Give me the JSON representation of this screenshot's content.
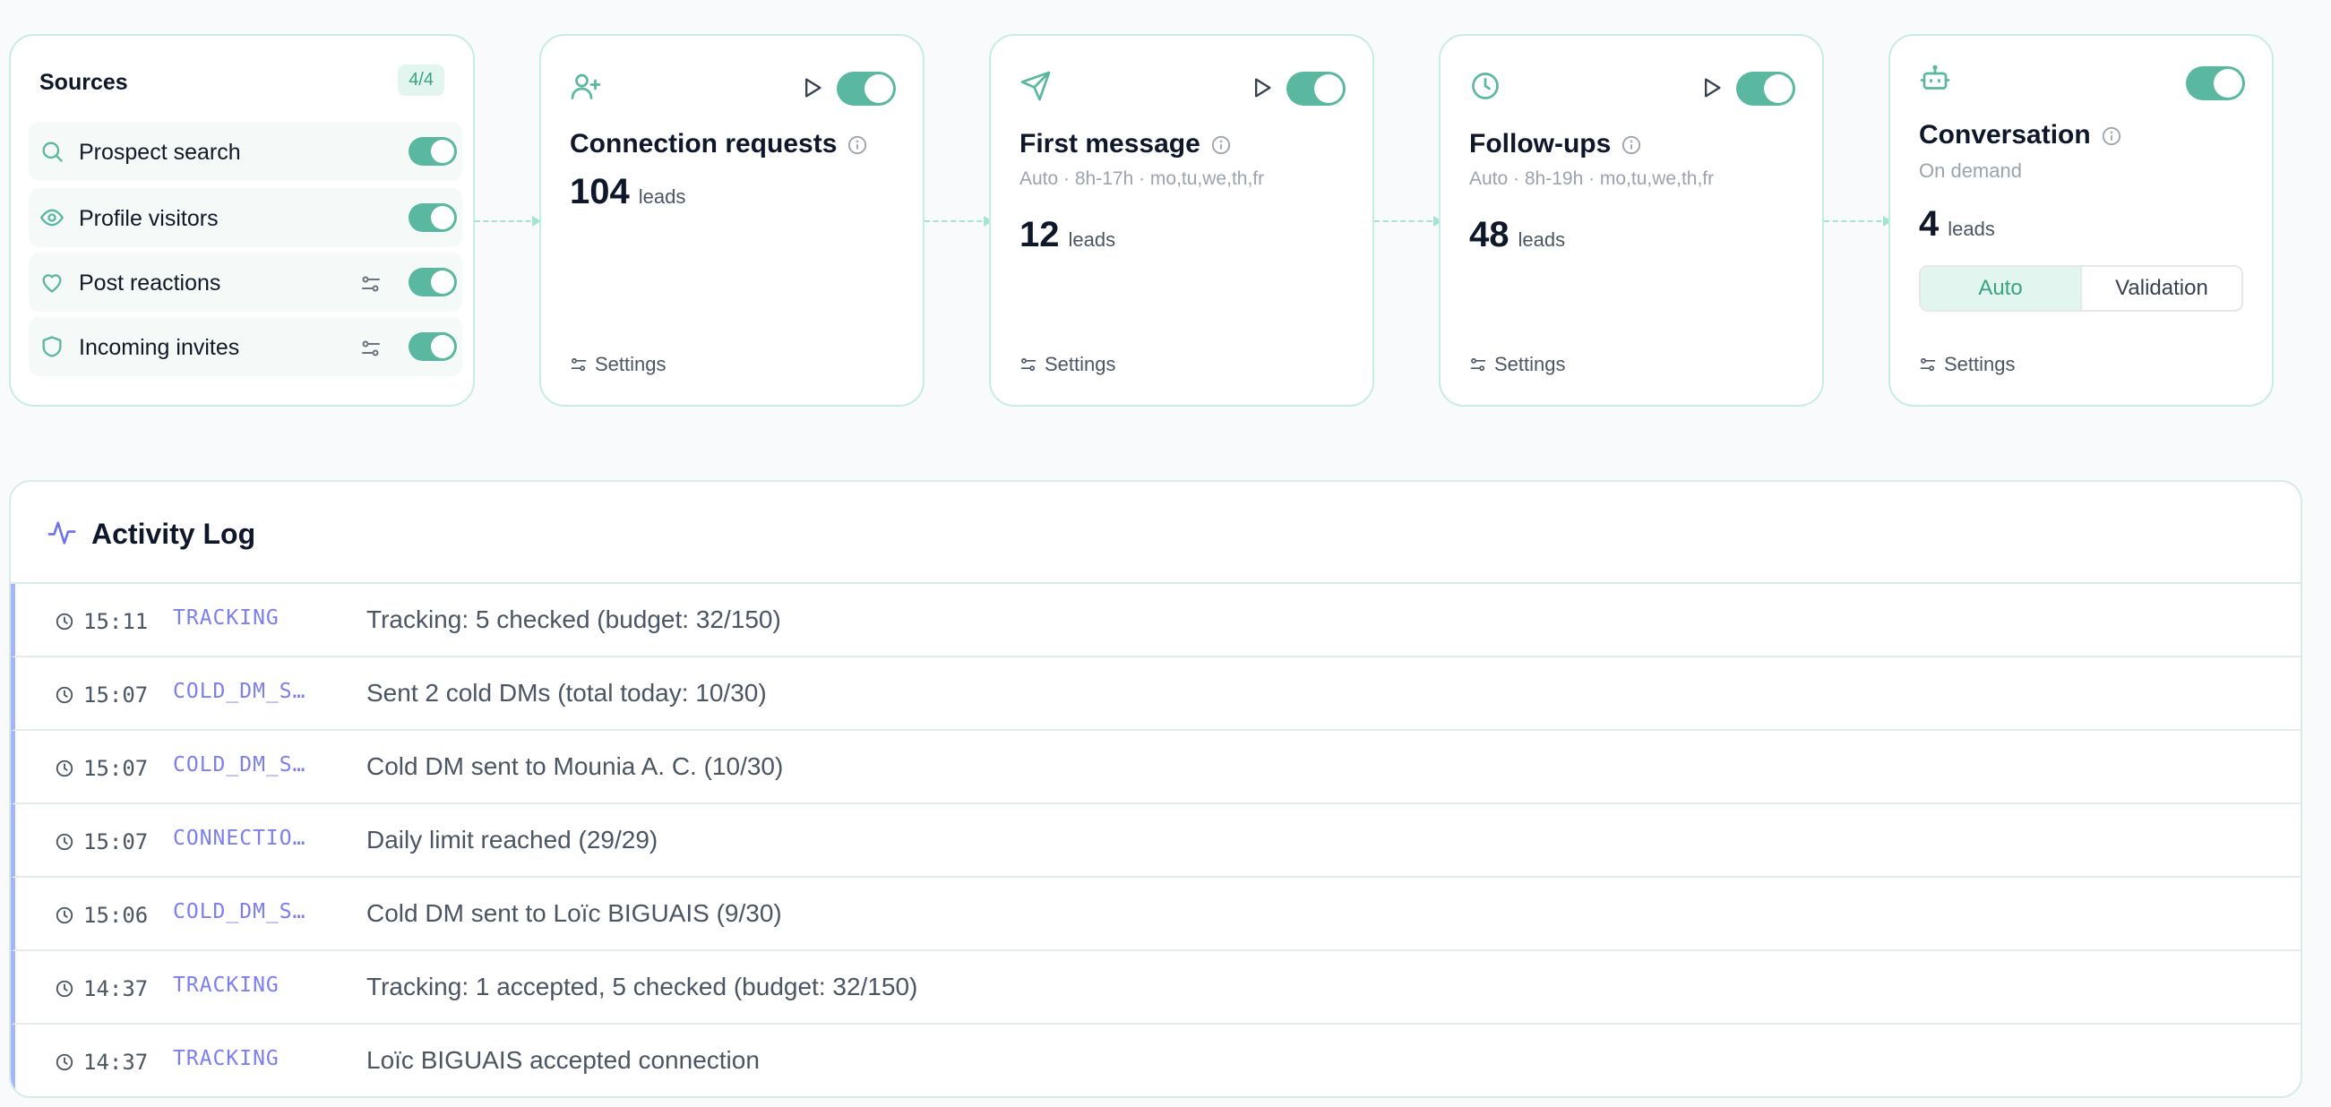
{
  "colors": {
    "accent": "#5bb8a0",
    "log_category": "#7c7ff0",
    "border": "#c7ede3"
  },
  "sources": {
    "title": "Sources",
    "badge": "4/4",
    "items": [
      {
        "label": "Prospect search",
        "icon": "search-icon",
        "enabled": true,
        "has_filter": false
      },
      {
        "label": "Profile visitors",
        "icon": "eye-icon",
        "enabled": true,
        "has_filter": false
      },
      {
        "label": "Post reactions",
        "icon": "heart-icon",
        "enabled": true,
        "has_filter": true
      },
      {
        "label": "Incoming invites",
        "icon": "shield-icon",
        "enabled": true,
        "has_filter": true
      }
    ]
  },
  "steps": [
    {
      "icon": "user-plus-icon",
      "title": "Connection requests",
      "subtitle": "",
      "count": "104",
      "unit": "leads",
      "settings": "Settings",
      "enabled": true
    },
    {
      "icon": "send-icon",
      "title": "First message",
      "subtitle": "Auto · 8h-17h · mo,tu,we,th,fr",
      "count": "12",
      "unit": "leads",
      "settings": "Settings",
      "enabled": true
    },
    {
      "icon": "clock-icon",
      "title": "Follow-ups",
      "subtitle": "Auto · 8h-19h · mo,tu,we,th,fr",
      "count": "48",
      "unit": "leads",
      "settings": "Settings",
      "enabled": true
    },
    {
      "icon": "bot-icon",
      "title": "Conversation",
      "subtitle": "On demand",
      "count": "4",
      "unit": "leads",
      "settings": "Settings",
      "enabled": true,
      "modes": [
        "Auto",
        "Validation"
      ],
      "selected_mode": "Auto"
    }
  ],
  "activity_log": {
    "title": "Activity Log",
    "entries": [
      {
        "time": "15:11",
        "category": "TRACKING",
        "message": "Tracking: 5 checked (budget: 32/150)"
      },
      {
        "time": "15:07",
        "category": "COLD_DM_S…",
        "message": "Sent 2 cold DMs (total today: 10/30)"
      },
      {
        "time": "15:07",
        "category": "COLD_DM_S…",
        "message": "Cold DM sent to Mounia A. C. (10/30)"
      },
      {
        "time": "15:07",
        "category": "CONNECTIO…",
        "message": "Daily limit reached (29/29)"
      },
      {
        "time": "15:06",
        "category": "COLD_DM_S…",
        "message": "Cold DM sent to Loïc BIGUAIS (9/30)"
      },
      {
        "time": "14:37",
        "category": "TRACKING",
        "message": "Tracking: 1 accepted, 5 checked (budget: 32/150)"
      },
      {
        "time": "14:37",
        "category": "TRACKING",
        "message": "Loïc BIGUAIS accepted connection"
      }
    ]
  }
}
